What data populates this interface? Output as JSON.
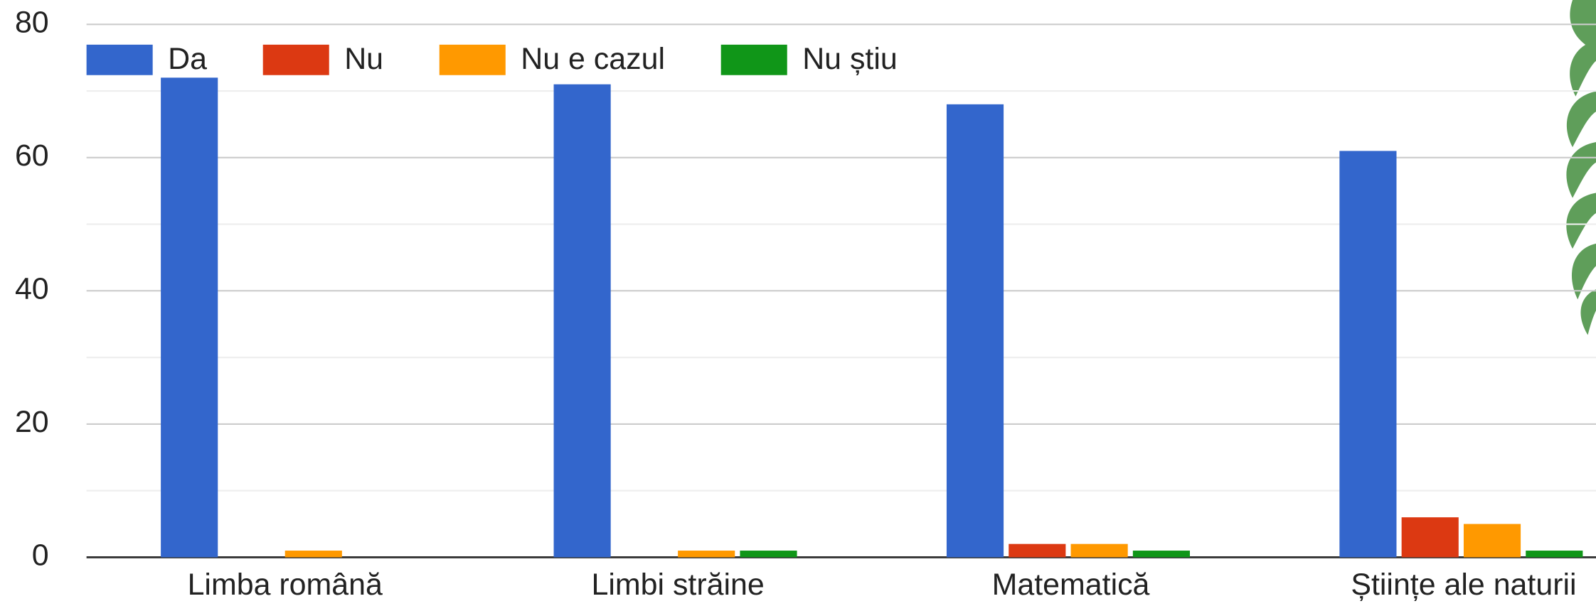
{
  "chart_data": {
    "type": "bar",
    "categories": [
      "Limba română",
      "Limbi străine",
      "Matematică",
      "Științe ale naturii"
    ],
    "series": [
      {
        "name": "Da",
        "color": "#3366cc",
        "values": [
          72,
          71,
          68,
          61
        ]
      },
      {
        "name": "Nu",
        "color": "#dc3912",
        "values": [
          0,
          0,
          2,
          6
        ]
      },
      {
        "name": "Nu e cazul",
        "color": "#ff9900",
        "values": [
          1,
          1,
          2,
          5
        ]
      },
      {
        "name": "Nu știu",
        "color": "#109618",
        "values": [
          0,
          1,
          1,
          1
        ]
      }
    ],
    "ylim": [
      0,
      80
    ],
    "yticks": [
      0,
      20,
      40,
      60,
      80
    ],
    "grid": true,
    "minor_grid": true,
    "legend": "top-left"
  }
}
